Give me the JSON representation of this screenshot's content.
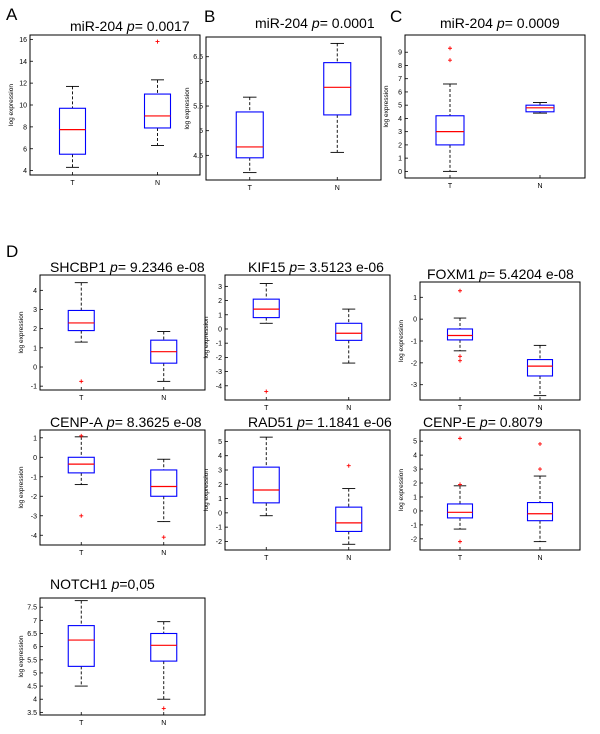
{
  "colors": {
    "box": "#0000ff",
    "median": "#ff0000",
    "outlier": "#ff0000",
    "whisker": "#000000",
    "frame": "#000000"
  },
  "panel_letters": [
    "A",
    "B",
    "C",
    "D"
  ],
  "chart_data": [
    {
      "type": "boxplot",
      "panel": "A",
      "gene": "miR-204",
      "pvalue": "0.0017",
      "ylabel": "log expression",
      "ylim": [
        3.6,
        16.4
      ],
      "yticks": [
        4,
        6,
        8,
        10,
        12,
        14,
        16
      ],
      "groups": [
        {
          "label": "T",
          "whisker_low": 4.3,
          "q1": 5.5,
          "median": 7.75,
          "q3": 9.7,
          "whisker_high": 11.7,
          "outliers": []
        },
        {
          "label": "N",
          "whisker_low": 6.3,
          "q1": 7.9,
          "median": 9.0,
          "q3": 11.0,
          "whisker_high": 12.3,
          "outliers": [
            15.8
          ]
        }
      ]
    },
    {
      "type": "boxplot",
      "panel": "B",
      "gene": "miR-204",
      "pvalue": "0.0001",
      "ylabel": "log expression",
      "ylim": [
        4.0,
        6.9
      ],
      "yticks": [
        4.5,
        5,
        5.5,
        6,
        6.5
      ],
      "groups": [
        {
          "label": "T",
          "whisker_low": 4.15,
          "q1": 4.45,
          "median": 4.67,
          "q3": 5.38,
          "whisker_high": 5.68,
          "outliers": []
        },
        {
          "label": "N",
          "whisker_low": 4.56,
          "q1": 5.32,
          "median": 5.88,
          "q3": 6.38,
          "whisker_high": 6.77,
          "outliers": []
        }
      ]
    },
    {
      "type": "boxplot",
      "panel": "C",
      "gene": "miR-204",
      "pvalue": "0.0009",
      "ylabel": "log expression",
      "ylim": [
        -0.5,
        10.3
      ],
      "yticks": [
        0,
        1,
        2,
        3,
        4,
        5,
        6,
        7,
        8,
        9
      ],
      "groups": [
        {
          "label": "T",
          "whisker_low": 0.0,
          "q1": 2.0,
          "median": 3.0,
          "q3": 4.2,
          "whisker_high": 6.6,
          "outliers": [
            8.4,
            9.3
          ]
        },
        {
          "label": "N",
          "whisker_low": 4.4,
          "q1": 4.5,
          "median": 4.8,
          "q3": 5.0,
          "whisker_high": 5.2,
          "outliers": []
        }
      ]
    },
    {
      "type": "boxplot",
      "panel": "D",
      "gene": "SHCBP1",
      "pvalue": "9.2346 e-08",
      "ylabel": "log expression",
      "ylim": [
        -1.2,
        4.8
      ],
      "yticks": [
        -1,
        0,
        1,
        2,
        3,
        4
      ],
      "groups": [
        {
          "label": "T",
          "whisker_low": 1.3,
          "q1": 1.9,
          "median": 2.3,
          "q3": 2.95,
          "whisker_high": 4.4,
          "outliers": [
            -0.75
          ]
        },
        {
          "label": "N",
          "whisker_low": -0.75,
          "q1": 0.2,
          "median": 0.8,
          "q3": 1.4,
          "whisker_high": 1.85,
          "outliers": []
        }
      ]
    },
    {
      "type": "boxplot",
      "panel": "D",
      "gene": "KIF15",
      "pvalue": "3.5123 e-06",
      "ylabel": "log expression",
      "ylim": [
        -5.0,
        3.8
      ],
      "yticks": [
        -4,
        -3,
        -2,
        -1,
        0,
        1,
        2,
        3
      ],
      "groups": [
        {
          "label": "T",
          "whisker_low": 0.4,
          "q1": 0.8,
          "median": 1.4,
          "q3": 2.1,
          "whisker_high": 3.2,
          "outliers": [
            -4.4
          ]
        },
        {
          "label": "N",
          "whisker_low": -2.4,
          "q1": -0.8,
          "median": -0.3,
          "q3": 0.4,
          "whisker_high": 1.4,
          "outliers": []
        }
      ]
    },
    {
      "type": "boxplot",
      "panel": "D",
      "gene": "FOXM1",
      "pvalue": "5.4204 e-08",
      "ylabel": "log expression",
      "ylim": [
        -3.7,
        1.7
      ],
      "yticks": [
        -3,
        -2,
        -1,
        0,
        1
      ],
      "groups": [
        {
          "label": "T",
          "whisker_low": -1.45,
          "q1": -0.95,
          "median": -0.75,
          "q3": -0.45,
          "whisker_high": 0.05,
          "outliers": [
            1.3,
            -1.7,
            -1.9
          ]
        },
        {
          "label": "N",
          "whisker_low": -3.5,
          "q1": -2.6,
          "median": -2.15,
          "q3": -1.85,
          "whisker_high": -1.2,
          "outliers": []
        }
      ]
    },
    {
      "type": "boxplot",
      "panel": "D",
      "gene": "CENP-A",
      "pvalue": "8.3625 e-08",
      "ylabel": "log expression",
      "ylim": [
        -4.5,
        1.4
      ],
      "yticks": [
        -4,
        -3,
        -2,
        -1,
        0,
        1
      ],
      "groups": [
        {
          "label": "T",
          "whisker_low": -1.4,
          "q1": -0.8,
          "median": -0.35,
          "q3": 0.0,
          "whisker_high": 1.05,
          "outliers": [
            1.1,
            -3.0
          ]
        },
        {
          "label": "N",
          "whisker_low": -3.3,
          "q1": -2.0,
          "median": -1.5,
          "q3": -0.65,
          "whisker_high": -0.1,
          "outliers": [
            -4.1
          ]
        }
      ]
    },
    {
      "type": "boxplot",
      "panel": "D",
      "gene": "RAD51",
      "pvalue": "1.1841 e-06",
      "ylabel": "log expression",
      "ylim": [
        -2.6,
        5.8
      ],
      "yticks": [
        -2,
        -1,
        0,
        1,
        2,
        3,
        4,
        5
      ],
      "groups": [
        {
          "label": "T",
          "whisker_low": -0.2,
          "q1": 0.7,
          "median": 1.6,
          "q3": 3.2,
          "whisker_high": 5.3,
          "outliers": []
        },
        {
          "label": "N",
          "whisker_low": -2.2,
          "q1": -1.3,
          "median": -0.7,
          "q3": 0.4,
          "whisker_high": 1.7,
          "outliers": [
            3.3
          ]
        }
      ]
    },
    {
      "type": "boxplot",
      "panel": "D",
      "gene": "CENP-E",
      "pvalue": "0.8079",
      "ylabel": "log expression",
      "ylim": [
        -2.8,
        5.8
      ],
      "yticks": [
        -2,
        -1,
        0,
        1,
        2,
        3,
        4,
        5
      ],
      "groups": [
        {
          "label": "T",
          "whisker_low": -1.3,
          "q1": -0.5,
          "median": -0.1,
          "q3": 0.5,
          "whisker_high": 1.8,
          "outliers": [
            5.2,
            1.9,
            -2.2
          ]
        },
        {
          "label": "N",
          "whisker_low": -2.2,
          "q1": -0.7,
          "median": -0.2,
          "q3": 0.6,
          "whisker_high": 2.5,
          "outliers": [
            4.8,
            3.0
          ]
        }
      ]
    },
    {
      "type": "boxplot",
      "panel": "D",
      "gene": "NOTCH1",
      "pvalue": "0,05",
      "pvalue_joined": true,
      "ylabel": "log expression",
      "ylim": [
        3.4,
        7.85
      ],
      "yticks": [
        3.5,
        4,
        4.5,
        5,
        5.5,
        6,
        6.5,
        7,
        7.5
      ],
      "groups": [
        {
          "label": "T",
          "whisker_low": 4.5,
          "q1": 5.25,
          "median": 6.25,
          "q3": 6.8,
          "whisker_high": 7.75,
          "outliers": []
        },
        {
          "label": "N",
          "whisker_low": 4.0,
          "q1": 5.45,
          "median": 6.05,
          "q3": 6.5,
          "whisker_high": 6.95,
          "outliers": [
            3.65
          ]
        }
      ]
    }
  ]
}
